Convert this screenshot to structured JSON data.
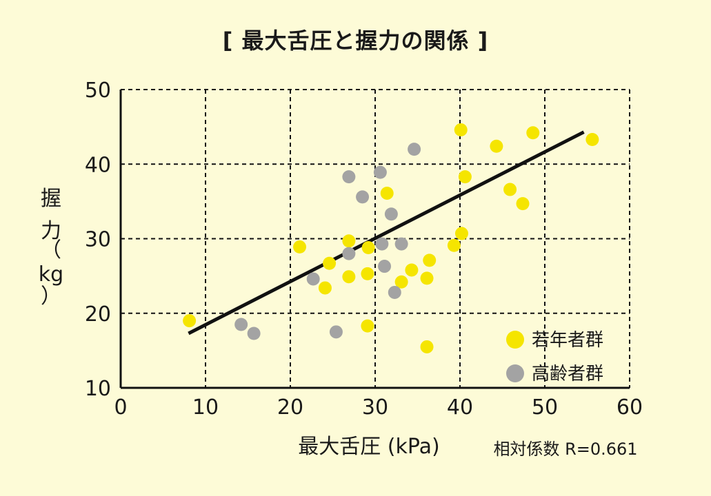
{
  "chart_data": {
    "type": "scatter",
    "title": "[ 最大舌圧と握力の関係 ]",
    "xlabel": "最大舌圧 (kPa)",
    "ylabel": [
      "握",
      "力",
      "（",
      "kg",
      "）"
    ],
    "annotation": "相対係数  R=0.661",
    "xlim": [
      0,
      60
    ],
    "ylim": [
      10,
      50
    ],
    "xticks": [
      0,
      10,
      20,
      30,
      40,
      50,
      60
    ],
    "yticks": [
      10,
      20,
      30,
      40,
      50
    ],
    "grid": true,
    "legend_position": "bottom-right",
    "series": [
      {
        "name": "若年者群",
        "color": "#f5e500",
        "points": [
          [
            8.1,
            19.0
          ],
          [
            21.1,
            28.9
          ],
          [
            24.1,
            23.4
          ],
          [
            24.6,
            26.7
          ],
          [
            26.9,
            24.9
          ],
          [
            26.9,
            29.7
          ],
          [
            29.1,
            25.3
          ],
          [
            29.1,
            18.3
          ],
          [
            29.2,
            28.8
          ],
          [
            31.4,
            36.1
          ],
          [
            33.1,
            24.2
          ],
          [
            34.3,
            25.8
          ],
          [
            36.1,
            24.7
          ],
          [
            36.4,
            27.1
          ],
          [
            36.1,
            15.5
          ],
          [
            39.3,
            29.1
          ],
          [
            40.2,
            30.7
          ],
          [
            40.1,
            44.6
          ],
          [
            40.6,
            38.3
          ],
          [
            44.3,
            42.4
          ],
          [
            45.9,
            36.6
          ],
          [
            47.4,
            34.7
          ],
          [
            48.6,
            44.2
          ],
          [
            55.6,
            43.3
          ]
        ]
      },
      {
        "name": "高齢者群",
        "color": "#a3a3a3",
        "points": [
          [
            14.2,
            18.5
          ],
          [
            15.7,
            17.3
          ],
          [
            22.7,
            24.6
          ],
          [
            25.4,
            17.5
          ],
          [
            26.9,
            38.3
          ],
          [
            26.9,
            28.0
          ],
          [
            28.5,
            35.6
          ],
          [
            30.6,
            38.9
          ],
          [
            30.8,
            29.3
          ],
          [
            31.1,
            26.3
          ],
          [
            31.9,
            33.3
          ],
          [
            32.3,
            22.8
          ],
          [
            33.1,
            29.3
          ],
          [
            34.6,
            42.0
          ]
        ]
      }
    ],
    "trendline": {
      "x": [
        8.0,
        54.6
      ],
      "y": [
        17.3,
        44.3
      ],
      "color": "#111111"
    }
  }
}
